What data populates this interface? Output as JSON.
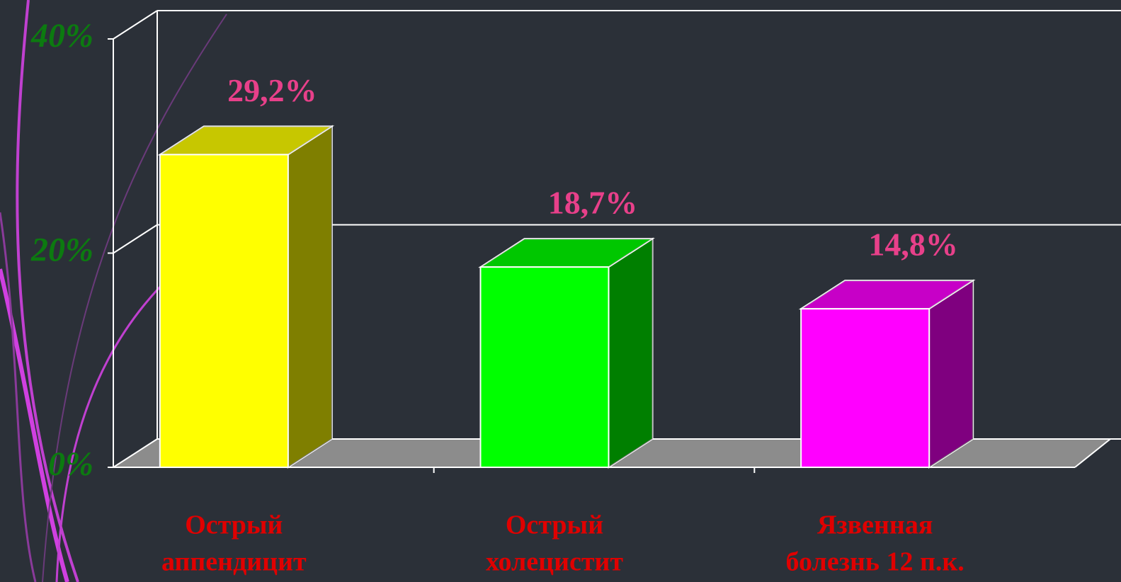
{
  "chart_data": {
    "type": "bar3d",
    "categories": [
      [
        "Острый",
        "аппендицит"
      ],
      [
        "Острый",
        "холецистит"
      ],
      [
        "Язвенная",
        "болезнь 12 п.к."
      ]
    ],
    "values": [
      29.2,
      18.7,
      14.8
    ],
    "value_labels": [
      "29,2%",
      "18,7%",
      "14,8%"
    ],
    "colors": [
      "#ffff00",
      "#00ff00",
      "#ff00ff"
    ],
    "ylim": [
      0,
      40
    ],
    "yticks": [
      {
        "value": 0,
        "label": "0%"
      },
      {
        "value": 20,
        "label": "20%"
      },
      {
        "value": 40,
        "label": "40%"
      }
    ],
    "grid": true
  }
}
